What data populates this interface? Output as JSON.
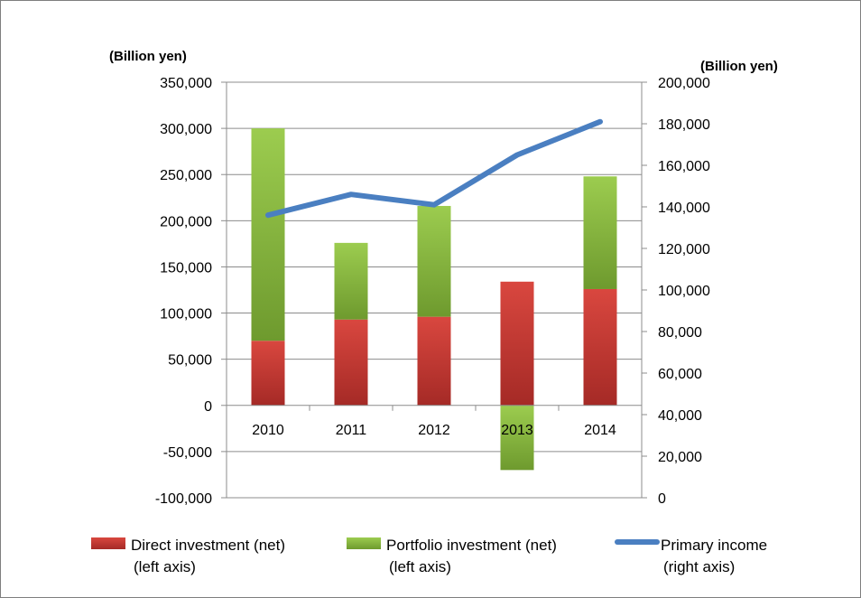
{
  "chart_data": {
    "type": "bar",
    "stacked": true,
    "categories": [
      "2010",
      "2011",
      "2012",
      "2013",
      "2014"
    ],
    "series": [
      {
        "name": "Direct investment (net)",
        "axis_note": "(left axis)",
        "type": "bar",
        "axis": "left",
        "color": "#c0392b",
        "values": [
          70000,
          93000,
          96000,
          134000,
          126000
        ]
      },
      {
        "name": "Portfolio investment (net)",
        "axis_note": "(left axis)",
        "type": "bar",
        "axis": "left",
        "color": "#7fb13a",
        "values": [
          230000,
          83000,
          120000,
          -70000,
          122000
        ]
      },
      {
        "name": "Primary income",
        "axis_note": "(right axis)",
        "type": "line",
        "axis": "right",
        "color": "#4a7fc1",
        "values": [
          136000,
          146000,
          141000,
          165000,
          181000
        ]
      }
    ],
    "left_axis": {
      "unit": "(Billion yen)",
      "ylim": [
        -100000,
        350000
      ],
      "ticks": [
        -100000,
        -50000,
        0,
        50000,
        100000,
        150000,
        200000,
        250000,
        300000,
        350000
      ],
      "tick_labels": [
        "-100,000",
        "-50,000",
        "0",
        "50,000",
        "100,000",
        "150,000",
        "200,000",
        "250,000",
        "300,000",
        "350,000"
      ]
    },
    "right_axis": {
      "unit": "(Billion yen)",
      "ylim": [
        0,
        200000
      ],
      "ticks": [
        0,
        20000,
        40000,
        60000,
        80000,
        100000,
        120000,
        140000,
        160000,
        180000,
        200000
      ],
      "tick_labels": [
        "0",
        "20,000",
        "40,000",
        "60,000",
        "80,000",
        "100,000",
        "120,000",
        "140,000",
        "160,000",
        "180,000",
        "200,000"
      ]
    },
    "grid": true,
    "legend_placement": "bottom"
  }
}
